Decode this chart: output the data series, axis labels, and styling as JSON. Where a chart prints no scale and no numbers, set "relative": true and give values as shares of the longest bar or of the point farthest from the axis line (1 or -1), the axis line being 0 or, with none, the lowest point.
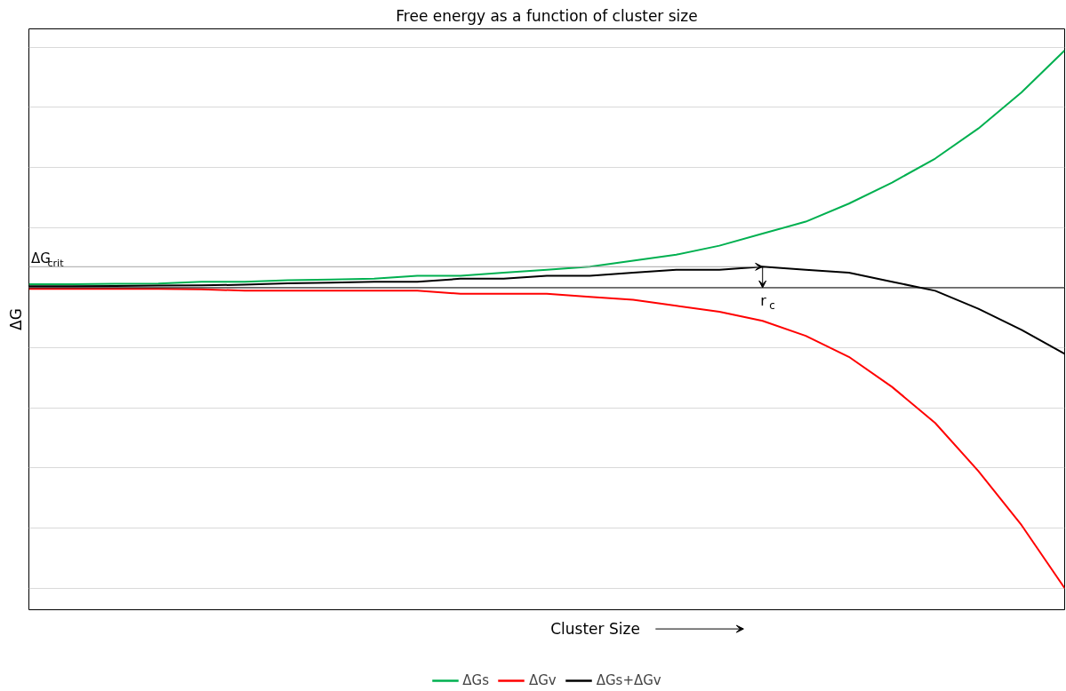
{
  "chart_data": {
    "type": "line",
    "title": "Free energy as a function of cluster size",
    "xlabel": "Cluster Size",
    "ylabel": "ΔG",
    "relative": true,
    "grid": "y",
    "legend": "bottom",
    "line_style": "solid",
    "marker": "none",
    "categories": [
      null,
      null,
      null,
      null,
      null,
      null,
      null,
      null,
      null,
      null,
      null,
      null,
      null,
      null,
      null,
      null,
      null,
      null,
      null,
      null,
      null,
      null,
      null,
      null,
      null
    ],
    "series": [
      {
        "name": "ΔGs",
        "color": "#00b050",
        "values": [
          0.012,
          0.012,
          0.013,
          0.014,
          0.02,
          0.02,
          0.025,
          0.027,
          0.03,
          0.04,
          0.04,
          0.05,
          0.06,
          0.07,
          0.09,
          0.11,
          0.14,
          0.18,
          0.22,
          0.28,
          0.35,
          0.43,
          0.53,
          0.65,
          0.79
        ]
      },
      {
        "name": "ΔGv",
        "color": "#ff0000",
        "values": [
          -0.004,
          -0.004,
          -0.004,
          -0.004,
          -0.005,
          -0.01,
          -0.01,
          -0.01,
          -0.01,
          -0.01,
          -0.02,
          -0.02,
          -0.02,
          -0.03,
          -0.04,
          -0.06,
          -0.08,
          -0.11,
          -0.16,
          -0.23,
          -0.33,
          -0.45,
          -0.61,
          -0.79,
          -1
        ]
      },
      {
        "name": "ΔGs+ΔGv",
        "color": "#000000",
        "values": [
          0.005,
          0.005,
          0.006,
          0.007,
          0.008,
          0.01,
          0.015,
          0.017,
          0.02,
          0.02,
          0.03,
          0.03,
          0.04,
          0.04,
          0.05,
          0.06,
          0.06,
          0.07,
          0.06,
          0.05,
          0.02,
          -0.01,
          -0.07,
          -0.14,
          -0.22
        ]
      }
    ],
    "ref_lines": [
      {
        "axis": "y",
        "value": 0.07,
        "label": "ΔG$_{crit}$",
        "color": "#a6a6a6"
      }
    ],
    "annotations": [
      "r$_{c}$"
    ]
  }
}
